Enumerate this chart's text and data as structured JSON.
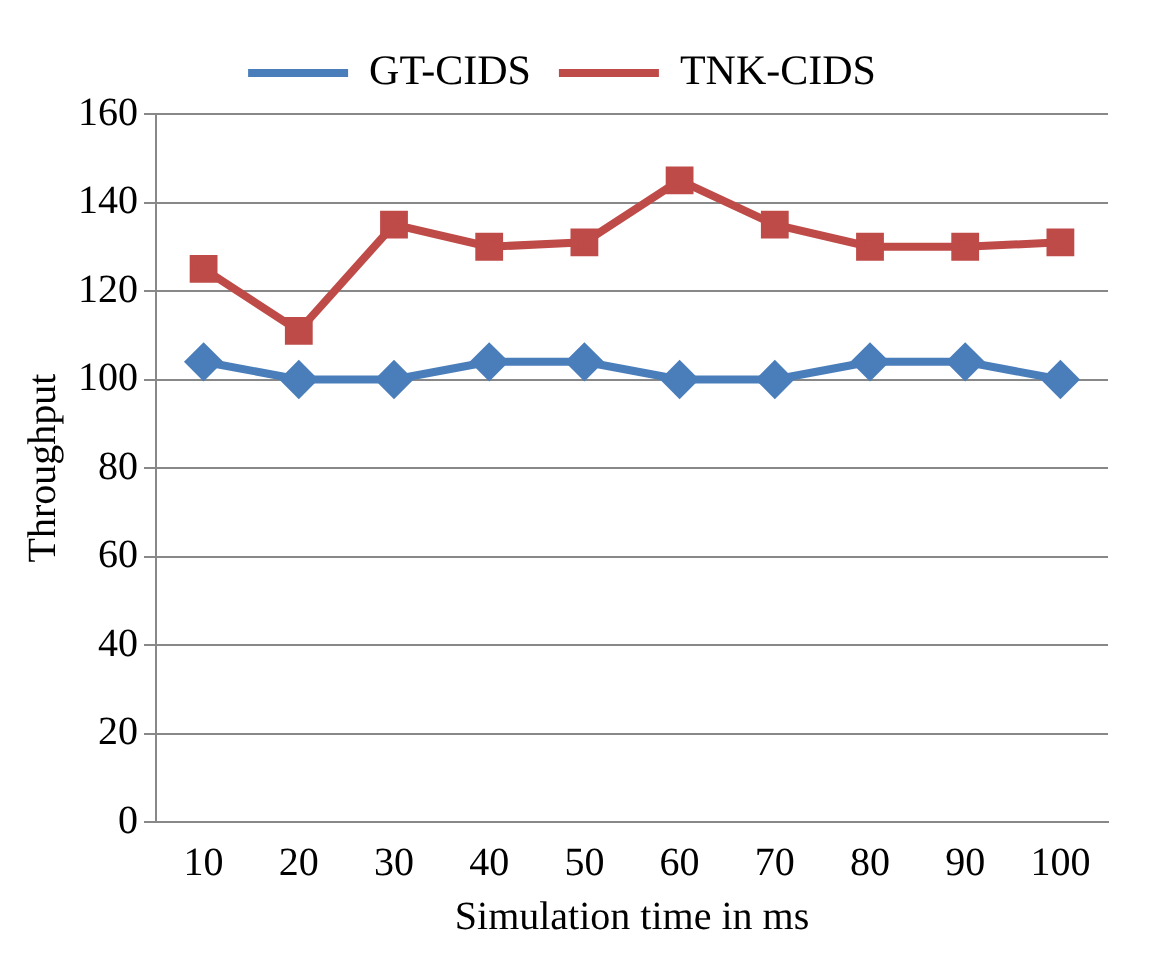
{
  "chart_data": {
    "type": "line",
    "xlabel": "Simulation time in ms",
    "ylabel": "Throughput",
    "categories": [
      "10",
      "20",
      "30",
      "40",
      "50",
      "60",
      "70",
      "80",
      "90",
      "100"
    ],
    "series": [
      {
        "name": "GT-CIDS",
        "color": "#4a7ebb",
        "marker": "diamond",
        "values": [
          104,
          100,
          100,
          104,
          104,
          100,
          100,
          104,
          104,
          100
        ]
      },
      {
        "name": "TNK-CIDS",
        "color": "#be4b48",
        "marker": "square",
        "values": [
          125,
          111,
          135,
          130,
          131,
          145,
          135,
          130,
          130,
          131
        ]
      }
    ],
    "ylim": [
      0,
      160
    ],
    "yticks": [
      0,
      20,
      40,
      60,
      80,
      100,
      120,
      140,
      160
    ],
    "grid": "y",
    "legend": "top",
    "line_style": "solid"
  }
}
